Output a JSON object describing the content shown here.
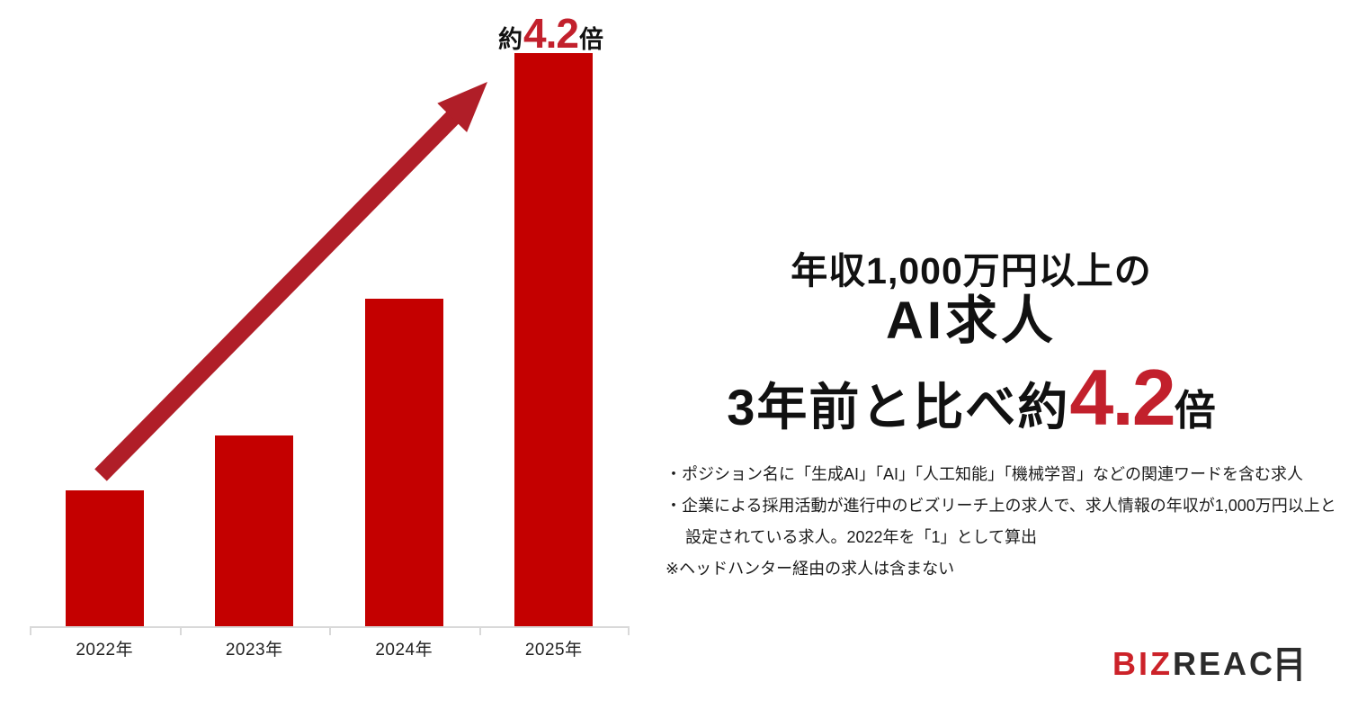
{
  "colors": {
    "bar_red": "#c40000",
    "arrow_red": "#b01e28",
    "accent_red": "#c2202c",
    "logo_red": "#cc2229",
    "axis_gray": "#d9d9d9",
    "ink": "#111111"
  },
  "chart_data": {
    "type": "bar",
    "categories": [
      "2022年",
      "2023年",
      "2024年",
      "2025年"
    ],
    "values": [
      1,
      1.4,
      2.4,
      4.2
    ],
    "title": "",
    "xlabel": "",
    "ylabel": "",
    "ylim": [
      0,
      4.4
    ],
    "grid": false,
    "legend": false,
    "bar_color": "#c40000",
    "annotation": "約4.2倍",
    "trend_arrow": {
      "from_category": "2022年",
      "to_category": "2025年",
      "color": "#b01e28"
    }
  },
  "peak_label": {
    "prefix": "約",
    "value": "4.2",
    "suffix": "倍"
  },
  "headline": {
    "line1": "年収1,000万円以上の",
    "line2": "AI求人",
    "line3_prefix": "3年前と比べ約",
    "line3_value": "4.2",
    "line3_suffix": "倍"
  },
  "notes": {
    "lines": [
      "・ポジション名に「生成AI」「AI」「人工知能」「機械学習」などの関連ワードを含む求人",
      "・企業による採用活動が進行中のビズリーチ上の求人で、求人情報の年収が1,000万円以上と",
      "設定されている求人。2022年を「1」として算出",
      "※ヘッドハンター経由の求人は含まない"
    ]
  },
  "logo": {
    "red_part": "BIZ",
    "dark_part": "REAC",
    "last_letter": "H",
    "alt": "BIZREACH"
  }
}
